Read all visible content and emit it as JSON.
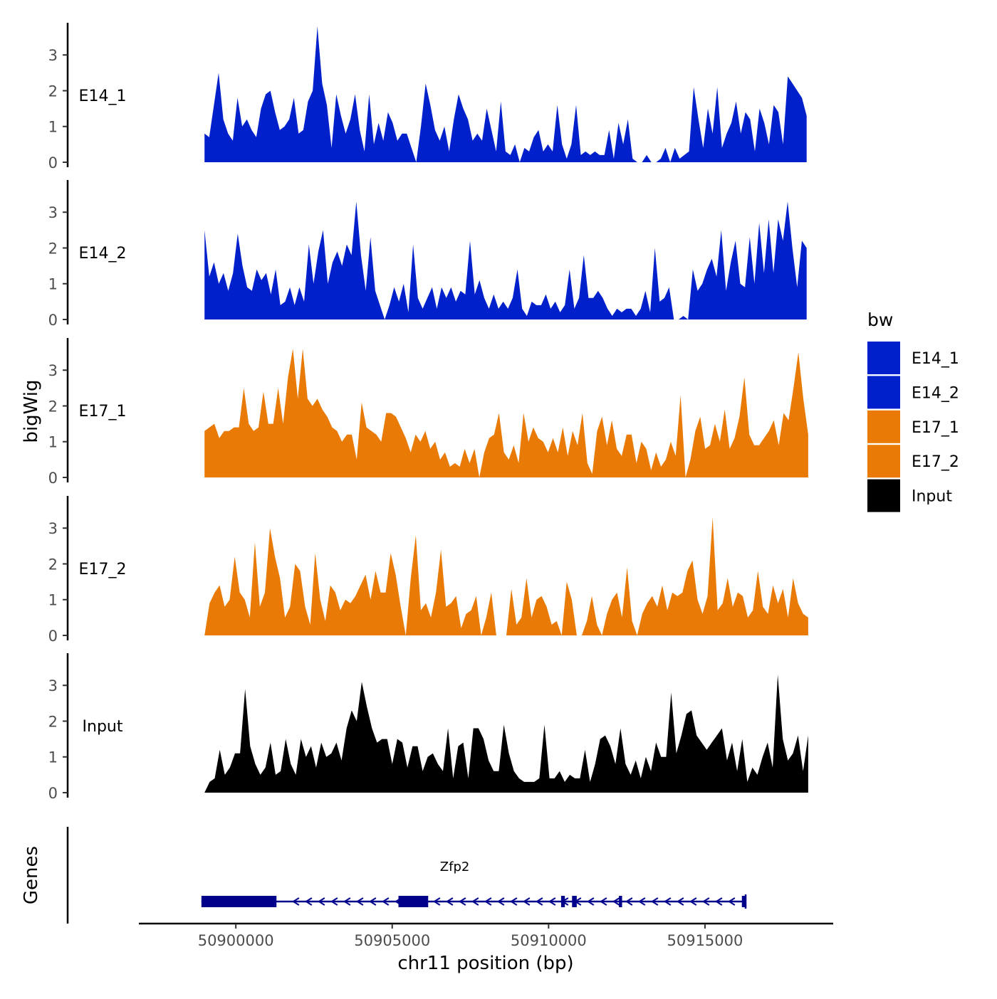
{
  "chart_data": {
    "type": "area",
    "chromosome": "chr11",
    "xlabel": "chr11 position (bp)",
    "ylabel": "bigWig",
    "genes_label": "Genes",
    "x_range": [
      50896900,
      50919100
    ],
    "x_ticks": [
      50900000,
      50905000,
      50910000,
      50915000
    ],
    "x_tick_labels": [
      "50900000",
      "50905000",
      "50910000",
      "50915000"
    ],
    "y_range": [
      0,
      3.9
    ],
    "y_ticks": [
      0,
      1,
      2,
      3
    ],
    "y_tick_labels": [
      "0",
      "1",
      "2",
      "3"
    ],
    "legend": {
      "title": "bw",
      "position": "right",
      "entries": [
        {
          "label": "E14_1",
          "color": "#0020CC"
        },
        {
          "label": "E14_2",
          "color": "#0020CC"
        },
        {
          "label": "E17_1",
          "color": "#E87A05"
        },
        {
          "label": "E17_2",
          "color": "#E87A05"
        },
        {
          "label": "Input",
          "color": "#000000"
        }
      ]
    },
    "tracks": [
      {
        "name": "E14_1",
        "color": "#0020CC",
        "x_start": 50899000,
        "x_end": 50918250,
        "values": [
          0.8,
          0.7,
          1.6,
          2.5,
          1.2,
          0.8,
          0.6,
          1.8,
          1.0,
          1.2,
          0.9,
          0.7,
          1.5,
          1.9,
          2.0,
          1.4,
          0.9,
          1.0,
          1.2,
          1.8,
          0.8,
          0.9,
          1.7,
          2.0,
          3.8,
          2.2,
          1.6,
          0.4,
          1.9,
          1.3,
          0.8,
          1.2,
          1.9,
          0.9,
          0.3,
          1.9,
          0.5,
          1.1,
          0.6,
          1.4,
          1.1,
          0.6,
          0.8,
          0.8,
          0.4,
          0.0,
          1.0,
          2.2,
          1.6,
          0.9,
          0.6,
          1.0,
          0.3,
          1.2,
          1.9,
          1.5,
          1.2,
          0.6,
          0.8,
          0.6,
          1.5,
          0.9,
          0.3,
          1.7,
          0.3,
          0.2,
          0.5,
          0.0,
          0.4,
          0.3,
          0.7,
          0.9,
          0.3,
          0.5,
          0.3,
          1.6,
          0.5,
          0.1,
          0.5,
          1.6,
          0.2,
          0.3,
          0.2,
          0.3,
          0.2,
          0.2,
          0.9,
          0.1,
          1.1,
          0.5,
          1.2,
          0.1,
          0.0,
          0.0,
          0.2,
          0.0,
          0.0,
          0.1,
          0.4,
          0.0,
          0.4,
          0.1,
          0.2,
          0.3,
          2.1,
          1.2,
          0.4,
          1.5,
          0.8,
          2.1,
          0.4,
          0.8,
          1.1,
          1.7,
          0.8,
          1.4,
          1.2,
          0.3,
          1.5,
          1.1,
          0.5,
          1.6,
          1.4,
          0.5,
          2.4,
          2.2,
          2.0,
          1.8,
          1.3
        ]
      },
      {
        "name": "E14_2",
        "color": "#0020CC",
        "x_start": 50899000,
        "x_end": 50918250,
        "values": [
          2.5,
          1.2,
          1.6,
          1.0,
          1.3,
          0.8,
          1.3,
          2.4,
          1.5,
          0.9,
          0.8,
          1.4,
          1.1,
          1.3,
          0.7,
          1.4,
          0.4,
          0.5,
          0.9,
          0.4,
          0.9,
          0.5,
          2.1,
          1.0,
          1.9,
          2.5,
          1.0,
          1.6,
          1.9,
          1.5,
          2.1,
          1.8,
          3.3,
          1.8,
          0.8,
          2.3,
          0.8,
          0.4,
          0.0,
          0.4,
          0.9,
          0.5,
          1.0,
          0.2,
          2.1,
          0.6,
          0.3,
          0.6,
          0.9,
          0.3,
          0.9,
          0.6,
          0.9,
          0.5,
          0.8,
          0.7,
          2.2,
          0.7,
          1.1,
          0.6,
          0.3,
          0.7,
          0.3,
          0.5,
          0.3,
          0.6,
          1.4,
          0.3,
          0.1,
          0.5,
          0.4,
          0.4,
          0.7,
          0.3,
          0.5,
          0.2,
          0.4,
          1.4,
          0.3,
          0.6,
          1.8,
          0.6,
          0.6,
          0.8,
          0.6,
          0.3,
          0.1,
          0.3,
          0.2,
          0.3,
          0.3,
          0.1,
          0.3,
          0.8,
          0.2,
          2.0,
          0.5,
          0.6,
          0.9,
          0.0,
          0.0,
          0.1,
          0.0,
          1.4,
          0.8,
          1.0,
          1.4,
          1.7,
          1.2,
          2.5,
          0.8,
          1.6,
          2.2,
          1.0,
          0.9,
          2.3,
          1.0,
          2.7,
          1.3,
          2.8,
          1.3,
          2.8,
          2.2,
          3.3,
          2.0,
          0.9,
          2.2,
          2.0
        ]
      },
      {
        "name": "E17_1",
        "color": "#E87A05",
        "x_start": 50899000,
        "x_end": 50918300,
        "values": [
          1.3,
          1.4,
          1.5,
          1.1,
          1.3,
          1.3,
          1.4,
          1.4,
          2.5,
          1.5,
          1.3,
          1.4,
          2.4,
          1.5,
          1.5,
          2.5,
          1.5,
          2.8,
          3.6,
          2.2,
          3.6,
          2.2,
          2.0,
          2.2,
          1.9,
          1.7,
          1.4,
          1.3,
          1.0,
          1.2,
          1.2,
          0.5,
          2.1,
          1.4,
          1.3,
          1.2,
          1.0,
          1.8,
          1.8,
          1.7,
          1.4,
          1.1,
          0.7,
          1.2,
          1.0,
          1.3,
          0.8,
          1.0,
          0.5,
          0.7,
          0.3,
          0.4,
          0.3,
          0.8,
          0.4,
          0.8,
          0.0,
          0.7,
          1.1,
          1.2,
          1.8,
          0.7,
          0.5,
          0.9,
          0.4,
          1.8,
          1.0,
          1.4,
          1.1,
          1.0,
          0.7,
          1.1,
          0.7,
          1.4,
          0.6,
          1.3,
          0.9,
          1.8,
          0.4,
          0.1,
          1.3,
          1.7,
          0.9,
          1.6,
          0.8,
          0.6,
          1.2,
          1.2,
          0.4,
          1.0,
          0.8,
          0.2,
          0.7,
          0.3,
          0.5,
          1.0,
          0.6,
          2.3,
          0.0,
          0.5,
          1.3,
          1.7,
          0.8,
          0.9,
          1.5,
          1.0,
          1.9,
          0.8,
          1.1,
          1.7,
          2.8,
          1.2,
          0.9,
          0.9,
          1.1,
          1.3,
          1.6,
          0.9,
          1.8,
          1.6,
          2.5,
          3.5,
          2.2,
          1.2
        ]
      },
      {
        "name": "E17_2",
        "color": "#E87A05",
        "x_start": 50899000,
        "x_end": 50918300,
        "values": [
          0.0,
          0.9,
          1.2,
          1.4,
          0.8,
          1.0,
          2.2,
          1.2,
          1.0,
          0.5,
          2.6,
          0.8,
          1.2,
          3.0,
          2.2,
          1.6,
          0.5,
          0.8,
          2.0,
          1.8,
          0.8,
          0.3,
          2.3,
          1.0,
          0.4,
          1.4,
          1.2,
          0.7,
          1.0,
          0.9,
          1.1,
          1.4,
          1.7,
          1.0,
          1.8,
          1.2,
          1.2,
          2.3,
          1.7,
          0.8,
          0.0,
          1.6,
          2.8,
          0.7,
          0.9,
          0.5,
          1.2,
          2.4,
          0.8,
          0.9,
          1.1,
          0.2,
          0.6,
          0.7,
          1.1,
          0.0,
          0.5,
          1.2,
          0.0,
          0.0,
          0.0,
          1.3,
          0.3,
          0.5,
          1.6,
          0.5,
          1.0,
          1.1,
          0.8,
          0.3,
          0.4,
          0.0,
          1.5,
          1.0,
          0.0,
          0.0,
          0.4,
          1.1,
          0.3,
          0.0,
          0.6,
          1.0,
          1.2,
          0.5,
          1.9,
          0.4,
          0.0,
          0.6,
          0.9,
          1.1,
          0.8,
          1.4,
          0.7,
          1.2,
          1.1,
          1.2,
          1.8,
          2.1,
          1.0,
          0.6,
          1.1,
          3.3,
          0.7,
          0.9,
          1.6,
          0.8,
          1.2,
          1.1,
          0.5,
          0.7,
          1.8,
          0.8,
          0.6,
          1.4,
          0.9,
          1.3,
          0.5,
          1.6,
          0.9,
          0.6,
          0.5
        ]
      },
      {
        "name": "Input",
        "color": "#000000",
        "x_start": 50899000,
        "x_end": 50918300,
        "values": [
          0.0,
          0.3,
          0.4,
          1.2,
          0.5,
          0.7,
          1.1,
          1.1,
          2.9,
          1.3,
          0.8,
          0.5,
          0.7,
          1.4,
          0.5,
          0.6,
          1.5,
          0.8,
          0.5,
          1.5,
          1.0,
          1.3,
          0.7,
          1.4,
          1.0,
          1.1,
          1.4,
          0.9,
          1.8,
          2.3,
          2.0,
          3.1,
          2.4,
          1.8,
          1.4,
          1.5,
          1.5,
          0.8,
          1.5,
          1.4,
          0.7,
          1.3,
          1.3,
          0.6,
          1.0,
          1.1,
          0.8,
          0.6,
          1.8,
          0.4,
          1.3,
          1.4,
          0.4,
          1.8,
          1.8,
          1.5,
          0.9,
          0.6,
          0.6,
          1.9,
          1.1,
          0.6,
          0.4,
          0.3,
          0.3,
          0.3,
          0.4,
          1.9,
          0.4,
          0.4,
          0.6,
          0.3,
          0.5,
          0.4,
          0.4,
          1.2,
          0.3,
          0.8,
          1.5,
          1.6,
          1.3,
          0.8,
          1.8,
          0.8,
          0.5,
          0.9,
          0.4,
          1.0,
          0.6,
          1.4,
          1.0,
          1.0,
          2.8,
          1.1,
          1.6,
          2.2,
          2.3,
          1.6,
          1.4,
          1.2,
          1.4,
          1.6,
          1.8,
          0.9,
          1.4,
          0.6,
          1.5,
          0.3,
          0.7,
          0.5,
          1.0,
          1.4,
          0.7,
          3.3,
          1.5,
          0.9,
          1.1,
          1.6,
          0.6,
          1.6
        ]
      }
    ],
    "gene": {
      "name": "Zfp2",
      "color": "#00008B",
      "strand": "-",
      "start": 50898900,
      "end": 50916300,
      "exons": [
        [
          50898900,
          50901300
        ],
        [
          50905200,
          50906150
        ],
        [
          50910400,
          50910520
        ],
        [
          50910750,
          50910900
        ],
        [
          50912250,
          50912350
        ],
        [
          50916180,
          50916300
        ]
      ],
      "thick_exons": [
        [
          50898900,
          50901300
        ],
        [
          50905200,
          50906150
        ],
        [
          50910750,
          50910900
        ],
        [
          50912250,
          50912350
        ],
        [
          50910400,
          50910520
        ]
      ]
    }
  }
}
